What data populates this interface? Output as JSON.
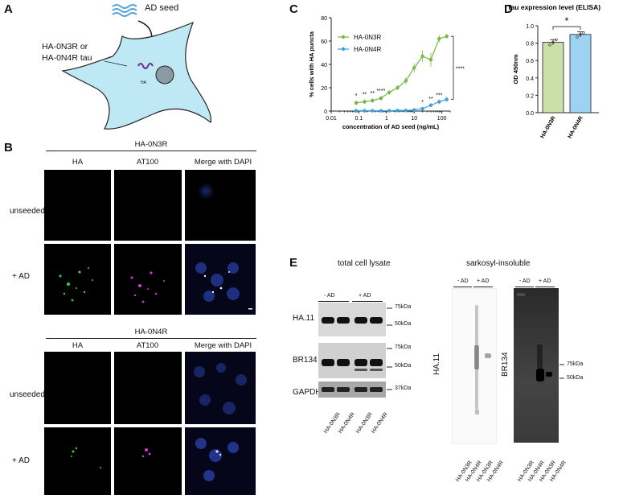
{
  "panel_labels": {
    "a": "A",
    "b": "B",
    "c": "C",
    "d": "D",
    "e": "E"
  },
  "panel_a": {
    "seed_label": "AD seed",
    "tau_label_line1": "HA-0N3R or",
    "tau_label_line2": "HA-0N4R tau",
    "ha_label": "HA",
    "colors": {
      "cell": "#bfe8f5",
      "nucleus": "#8a9aa4",
      "seed": "#5aa3d9",
      "tau": "#6b2d8f"
    }
  },
  "panel_b": {
    "groups": [
      {
        "title": "HA-0N3R",
        "columns": [
          "HA",
          "AT100",
          "Merge with DAPI"
        ],
        "rows": [
          "unseeded",
          "+ AD"
        ]
      },
      {
        "title": "HA-0N4R",
        "columns": [
          "HA",
          "AT100",
          "Merge with DAPI"
        ],
        "rows": [
          "unseeded",
          "+ AD"
        ]
      }
    ]
  },
  "chart_data": [
    {
      "type": "line",
      "panel": "C",
      "title": "",
      "xlabel": "concentration of AD seed (ng/mL)",
      "ylabel": "% cells with HA puncta",
      "xscale": "log",
      "xlim": [
        0.01,
        200
      ],
      "ylim": [
        0,
        80
      ],
      "xticks": [
        "0.01",
        "0.1",
        "1",
        "10",
        "100"
      ],
      "yticks": [
        "0",
        "20",
        "40",
        "60",
        "80"
      ],
      "legend_position": "top-left",
      "series": [
        {
          "name": "HA-0N3R",
          "color": "#7ab648",
          "x": [
            0.08,
            0.16,
            0.31,
            0.63,
            1.25,
            2.5,
            5,
            10,
            20,
            40,
            80,
            150
          ],
          "y": [
            7,
            8,
            9,
            11,
            16,
            20,
            26,
            37,
            47,
            44,
            62,
            64
          ],
          "err": [
            2,
            2,
            2,
            2,
            2,
            2,
            3,
            4,
            5,
            6,
            3,
            2
          ]
        },
        {
          "name": "HA-0N4R",
          "color": "#3ba0e0",
          "x": [
            0.08,
            0.16,
            0.31,
            0.63,
            1.25,
            2.5,
            5,
            10,
            20,
            40,
            80,
            150
          ],
          "y": [
            0.3,
            0.3,
            0.3,
            0.3,
            0.3,
            0.5,
            0.5,
            1,
            2,
            5,
            8,
            10
          ],
          "err": [
            0.3,
            0.3,
            0.3,
            0.3,
            0.3,
            0.3,
            0.3,
            0.5,
            1,
            1,
            2,
            2
          ]
        }
      ],
      "annotations": [
        {
          "text": "*",
          "x": 0.08
        },
        {
          "text": "**",
          "x": 0.16
        },
        {
          "text": "**",
          "x": 0.31
        },
        {
          "text": "****",
          "x": 0.63
        },
        {
          "text": "*",
          "x": 20
        },
        {
          "text": "**",
          "x": 40
        },
        {
          "text": "***",
          "x": 80
        },
        {
          "text": "****",
          "bracket": true
        }
      ]
    },
    {
      "type": "bar",
      "panel": "D",
      "title": "Tau expression level (ELISA)",
      "xlabel": "",
      "ylabel": "OD 450nm",
      "categories": [
        "HA-0N3R",
        "HA-0N4R"
      ],
      "values": [
        0.81,
        0.9
      ],
      "err": [
        0.03,
        0.03
      ],
      "points": [
        [
          0.78,
          0.81,
          0.84
        ],
        [
          0.87,
          0.9,
          0.92
        ]
      ],
      "colors": [
        "#c9e1a9",
        "#9dd2f2"
      ],
      "ylim": [
        0,
        1.0
      ],
      "yticks": [
        "0.0",
        "0.2",
        "0.4",
        "0.6",
        "0.8",
        "1.0"
      ],
      "significance": "*"
    }
  ],
  "panel_e": {
    "total_title": "total cell lysate",
    "sarko_title": "sarkosyl-insoluble",
    "group_labels": [
      "- AD",
      "+ AD"
    ],
    "rows": [
      "HA.11",
      "BR134",
      "GAPDH"
    ],
    "markers_total": [
      "75kDa",
      "50kDa",
      "75kDa",
      "50kDa",
      "37kDa"
    ],
    "markers_sarko": [
      "75kDa",
      "50kDa"
    ],
    "lanes": [
      "HA-0N3R",
      "HA-0N4R",
      "HA-0N3R",
      "HA-0N4R"
    ],
    "sarko_blot_labels": [
      "HA.11",
      "BR134"
    ]
  }
}
